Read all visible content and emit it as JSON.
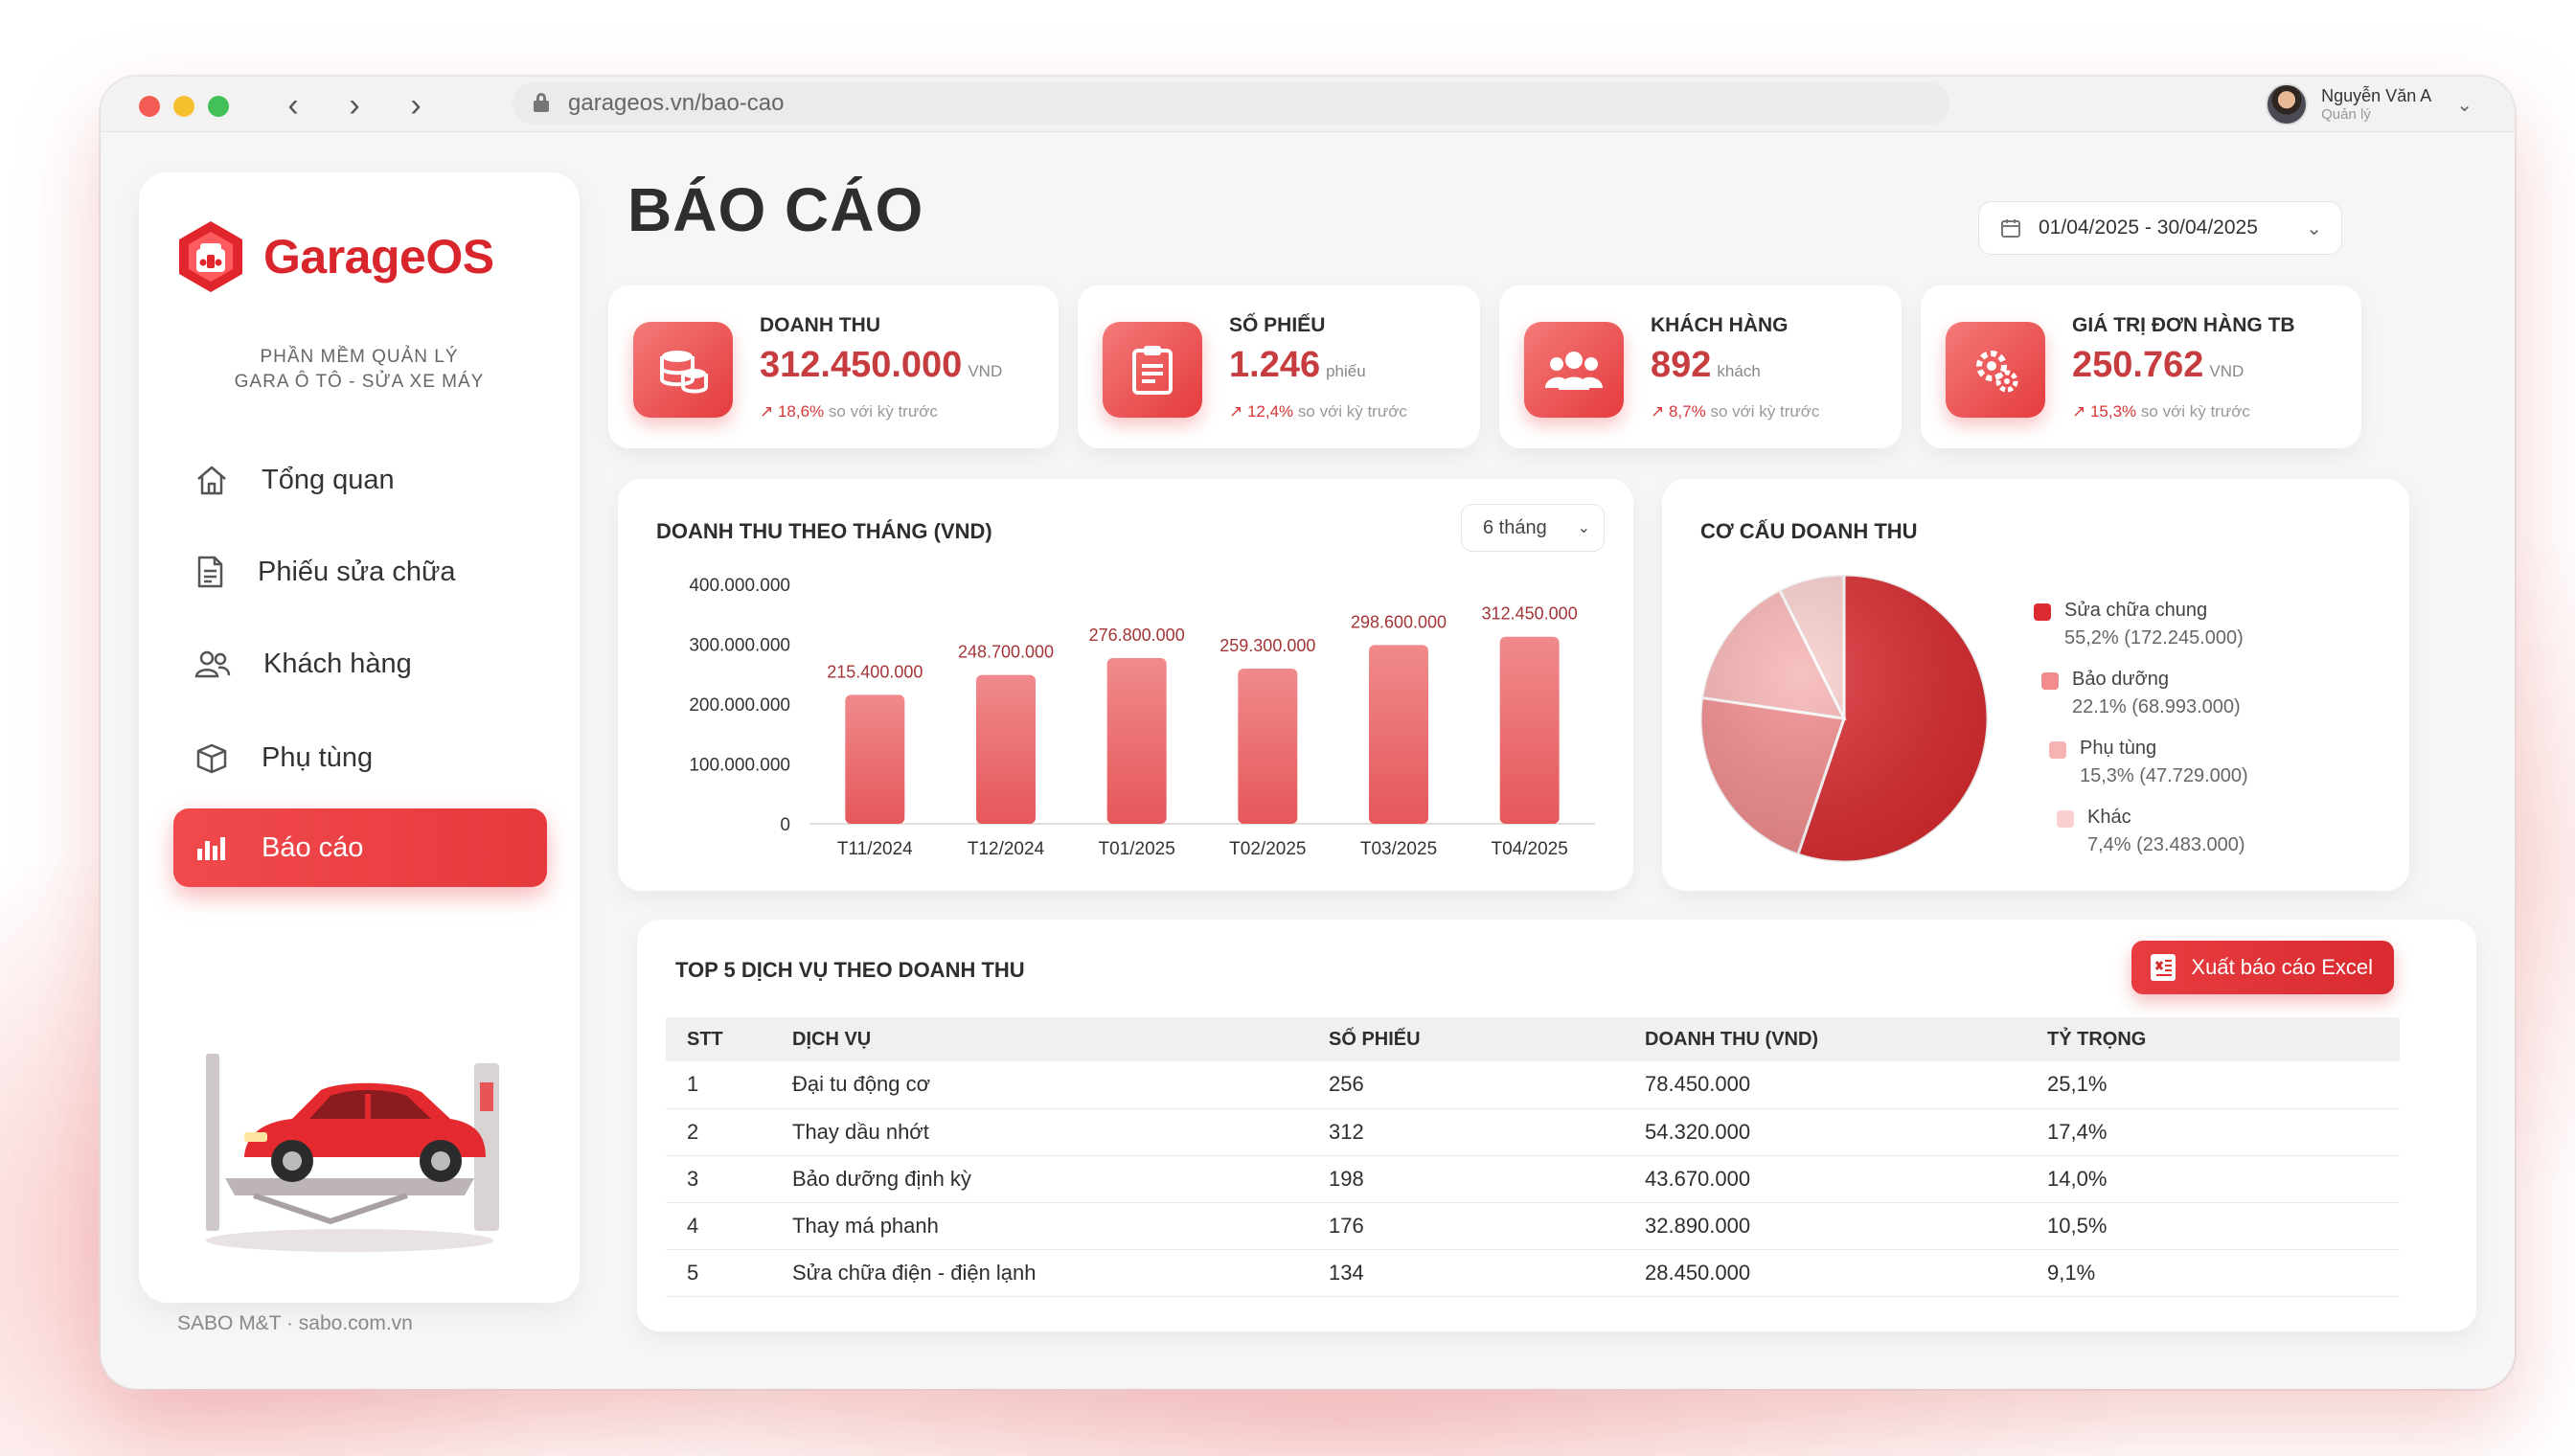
{
  "browser": {
    "url": "garageos.vn/bao-cao",
    "user_name": "Nguyễn Văn A",
    "user_role": "Quản lý"
  },
  "sidebar": {
    "brand": "GarageOS",
    "tagline_line1": "PHẦN MỀM QUẢN LÝ",
    "tagline_line2": "GARA Ô TÔ - SỬA XE MÁY",
    "items": [
      {
        "label": "Tổng quan",
        "icon": "home-icon",
        "active": false
      },
      {
        "label": "Phiếu sửa chữa",
        "icon": "document-icon",
        "active": false
      },
      {
        "label": "Khách hàng",
        "icon": "users-icon",
        "active": false
      },
      {
        "label": "Phụ tùng",
        "icon": "box-icon",
        "active": false
      },
      {
        "label": "Báo cáo",
        "icon": "bar-chart-icon",
        "active": true
      }
    ],
    "footer": "SABO M&T · sabo.com.vn"
  },
  "page": {
    "title": "BÁO CÁO",
    "date_range": "01/04/2025 - 30/04/2025"
  },
  "kpis": [
    {
      "label": "DOANH THU",
      "value": "312.450.000",
      "unit": "VND",
      "delta": "↗ 18,6%",
      "compare": "so với kỳ trước",
      "icon": "coins-icon"
    },
    {
      "label": "SỐ PHIẾU",
      "value": "1.246",
      "unit": "phiếu",
      "delta": "↗ 12,4%",
      "compare": "so với kỳ trước",
      "icon": "clipboard-icon"
    },
    {
      "label": "KHÁCH HÀNG",
      "value": "892",
      "unit": "khách",
      "delta": "↗ 8,7%",
      "compare": "so với kỳ trước",
      "icon": "users-icon"
    },
    {
      "label": "GIÁ TRỊ ĐƠN HÀNG TB",
      "value": "250.762",
      "unit": "VND",
      "delta": "↗ 15,3%",
      "compare": "so với kỳ trước",
      "icon": "gear-icon"
    }
  ],
  "revenue_card": {
    "title": "DOANH THU THEO THÁNG (VND)",
    "range_label": "6 tháng"
  },
  "mix_card": {
    "title": "CƠ CẤU DOANH THU"
  },
  "chart_data": [
    {
      "type": "bar",
      "title": "DOANH THU THEO THÁNG (VND)",
      "categories": [
        "T11/2024",
        "T12/2024",
        "T01/2025",
        "T02/2025",
        "T03/2025",
        "T04/2025"
      ],
      "values": [
        215400000,
        248700000,
        276800000,
        259300000,
        298600000,
        312450000
      ],
      "value_labels": [
        "215.400.000",
        "248.700.000",
        "276.800.000",
        "259.300.000",
        "298.600.000",
        "312.450.000"
      ],
      "yticks": [
        "0",
        "100.000.000",
        "200.000.000",
        "300.000.000",
        "400.000.000"
      ],
      "ylim": [
        0,
        400000000
      ],
      "grid": false,
      "color": "#e5575a"
    },
    {
      "type": "pie",
      "title": "CƠ CẤU DOANH THU",
      "legend_position": "right",
      "slices": [
        {
          "name": "Sửa chữa chung",
          "percent": 55.2,
          "percent_label": "55,2%",
          "amount": "172.245.000",
          "color": "#d92b30"
        },
        {
          "name": "Bảo dưỡng",
          "percent": 22.1,
          "percent_label": "22.1%",
          "amount": "68.993.000",
          "color": "#f18b8d"
        },
        {
          "name": "Phụ tùng",
          "percent": 15.3,
          "percent_label": "15,3%",
          "amount": "47.729.000",
          "color": "#f6b3b4"
        },
        {
          "name": "Khác",
          "percent": 7.4,
          "percent_label": "7,4%",
          "amount": "23.483.000",
          "color": "#f9cfcf"
        }
      ]
    }
  ],
  "top_services": {
    "title": "TOP 5 DỊCH VỤ THEO DOANH THU",
    "export_label": "Xuất báo cáo Excel",
    "columns": [
      "STT",
      "DỊCH VỤ",
      "SỐ PHIẾU",
      "DOANH THU (VND)",
      "TỶ TRỌNG"
    ],
    "rows": [
      [
        "1",
        "Đại tu động cơ",
        "256",
        "78.450.000",
        "25,1%"
      ],
      [
        "2",
        "Thay dầu nhớt",
        "312",
        "54.320.000",
        "17,4%"
      ],
      [
        "3",
        "Bảo dưỡng định kỳ",
        "198",
        "43.670.000",
        "14,0%"
      ],
      [
        "4",
        "Thay má phanh",
        "176",
        "32.890.000",
        "10,5%"
      ],
      [
        "5",
        "Sửa chữa điện - điện lạnh",
        "134",
        "28.450.000",
        "9,1%"
      ]
    ]
  },
  "colors": {
    "accent": "#e63a3d",
    "accent_dark": "#d92b30",
    "value_text": "#c73c3f"
  }
}
